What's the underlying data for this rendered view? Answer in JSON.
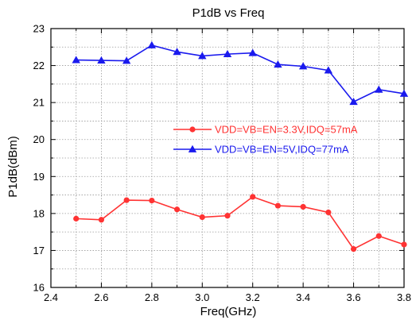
{
  "chart_data": {
    "type": "line",
    "title": "P1dB vs Freq",
    "xlabel": "Freq(GHz)",
    "ylabel": "P1dB(dBm)",
    "xlim": [
      2.4,
      3.8
    ],
    "ylim": [
      16,
      23
    ],
    "xticks": [
      2.4,
      2.6,
      2.8,
      3.0,
      3.2,
      3.4,
      3.6,
      3.8
    ],
    "xtick_labels": [
      "2.4",
      "2.6",
      "2.8",
      "3.0",
      "3.2",
      "3.4",
      "3.6",
      "3.8"
    ],
    "yticks": [
      16,
      17,
      18,
      19,
      20,
      21,
      22,
      23
    ],
    "ytick_labels": [
      "16",
      "17",
      "18",
      "19",
      "20",
      "21",
      "22",
      "23"
    ],
    "grid": true,
    "legend_position": "center-right",
    "x": [
      2.5,
      2.6,
      2.7,
      2.8,
      2.9,
      3.0,
      3.1,
      3.2,
      3.3,
      3.4,
      3.5,
      3.6,
      3.7,
      3.8
    ],
    "series": [
      {
        "name": "VDD=VB=EN=3.3V,IDQ=57mA",
        "color": "#ff3333",
        "marker": "circle",
        "values": [
          17.86,
          17.83,
          18.36,
          18.35,
          18.11,
          17.9,
          17.94,
          18.45,
          18.21,
          18.18,
          18.03,
          17.04,
          17.39,
          17.16
        ]
      },
      {
        "name": "VDD=VB=EN=5V,IDQ=77mA",
        "color": "#1a1aee",
        "marker": "triangle",
        "values": [
          22.15,
          22.14,
          22.13,
          22.55,
          22.37,
          22.26,
          22.31,
          22.34,
          22.03,
          21.98,
          21.87,
          21.02,
          21.35,
          21.24
        ]
      }
    ]
  }
}
